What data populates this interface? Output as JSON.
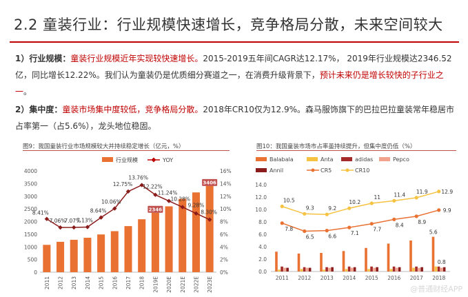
{
  "title": "2.2 童装行业：行业规模快速增长，竞争格局分散，未来空间较大",
  "p1": {
    "label": "1）行业规模：",
    "red1": "童装行业规模近年实现较快速增长。",
    "t1": "2015-2019五年间CAGR达12.17%， 2019年行业规模达2346.52亿，同比增长12.22%。我们认为童装仍是优质细分赛道之一，在消费升级背景下，",
    "red2": "预计未来仍是增长较快的子行业之一",
    "t2": "。"
  },
  "p2": {
    "label": "2）集中度：",
    "red1": "童装市场集中度较低，竞争格局分散。",
    "t1": "2018年CR10仅为12.9%。森马服饰旗下的巴拉巴拉童装常年稳居市占率第一（占5.6%），龙头地位稳固。"
  },
  "fig9_caption": "图9：我国童装行业市场规模较大并持续稳定增长（亿元，%）",
  "fig10_caption": "图10：我国童装市场市占率虽持续提升，但集中度仍低（%）",
  "watermark": "@普通财经APP",
  "colors": {
    "orange": "#e97132",
    "red": "#c00000",
    "darkred": "#8b1c1c",
    "yellow": "#f5c242",
    "pink": "#f2a38e",
    "anta": "#f0a030",
    "crimson": "#a52a2a"
  },
  "chart_data": [
    {
      "type": "bar+line",
      "categories": [
        "2011",
        "2012",
        "2013",
        "2014",
        "2015",
        "2016",
        "2017",
        "2018",
        "2019E",
        "2020E",
        "2021E",
        "2022E",
        "2023E"
      ],
      "series": [
        {
          "name": "行业规模",
          "kind": "bar",
          "values": [
            1080,
            1200,
            1280,
            1360,
            1490,
            1620,
            1820,
            2090,
            2346,
            2600,
            2900,
            3150,
            3406
          ],
          "labels": {
            "8": "2346",
            "12": "3406"
          }
        },
        {
          "name": "YOY",
          "kind": "line",
          "axis": "right",
          "values": [
            8.41,
            7.06,
            7.07,
            7.13,
            8.64,
            10.06,
            12.75,
            13.76,
            12.22,
            11.24,
            10.28,
            9.28,
            8.3
          ],
          "labels": [
            "8.41%",
            "7.06%",
            "7.07%",
            "7.13%",
            "8.64%",
            "10.06%",
            "12.75%",
            "13.76%",
            "12.22%",
            "11.24%",
            "10.28%",
            "9.28%",
            "8.30%"
          ]
        }
      ],
      "yticks_left": [
        "0",
        "500",
        "1000",
        "1500",
        "2000",
        "2500",
        "3000",
        "3500",
        "4000"
      ],
      "yticks_right": [
        "0%",
        "2%",
        "4%",
        "6%",
        "8%",
        "10%",
        "12%",
        "14%",
        "16%"
      ],
      "ylim_left": [
        0,
        4000
      ],
      "ylim_right": [
        0,
        16
      ]
    },
    {
      "type": "bar+line",
      "categories": [
        "2011",
        "2012",
        "2013",
        "2014",
        "2015",
        "2016",
        "2017",
        "2018"
      ],
      "series": [
        {
          "name": "Balabala",
          "kind": "bar",
          "values": [
            3.2,
            2.9,
            3.0,
            3.3,
            3.8,
            4.5,
            5.0,
            5.6
          ],
          "labels": {
            "7": "5.6"
          }
        },
        {
          "name": "Anta",
          "kind": "bar",
          "values": [
            0.3,
            0.4,
            0.3,
            0.4,
            0.4,
            0.4,
            0.6,
            0.8
          ]
        },
        {
          "name": "adidas",
          "kind": "bar",
          "values": [
            0.8,
            0.7,
            0.7,
            0.8,
            0.8,
            0.8,
            0.8,
            0.8
          ],
          "labels": {
            "7": "0.8"
          }
        },
        {
          "name": "Pepco",
          "kind": "bar",
          "values": [
            0.6,
            0.6,
            0.6,
            0.6,
            0.6,
            0.6,
            0.6,
            0.6
          ]
        },
        {
          "name": "Annil",
          "kind": "bar",
          "values": [
            0.6,
            0.6,
            0.7,
            0.7,
            0.7,
            0.7,
            0.7,
            0.7
          ]
        },
        {
          "name": "CR5",
          "kind": "line",
          "values": [
            7.8,
            6.5,
            6.6,
            7.1,
            7.7,
            8.4,
            8.9,
            9.9
          ],
          "labels": [
            "7.8",
            "6.5",
            "6.6",
            "7.1",
            "7.7",
            "8.4",
            "8.9",
            "9.9"
          ]
        },
        {
          "name": "CR10",
          "kind": "line",
          "values": [
            10.5,
            9.3,
            9.2,
            10.2,
            11.0,
            11.4,
            11.9,
            12.9
          ],
          "labels": [
            "10.5",
            "9.3",
            "9.2",
            "10.2",
            "11",
            "11.4",
            "11.9",
            "12.9"
          ]
        }
      ],
      "yticks": [
        "0.0",
        "2.0",
        "4.0",
        "6.0",
        "8.0",
        "10.0",
        "12.0",
        "14.0"
      ],
      "ylim": [
        0,
        14
      ]
    }
  ]
}
